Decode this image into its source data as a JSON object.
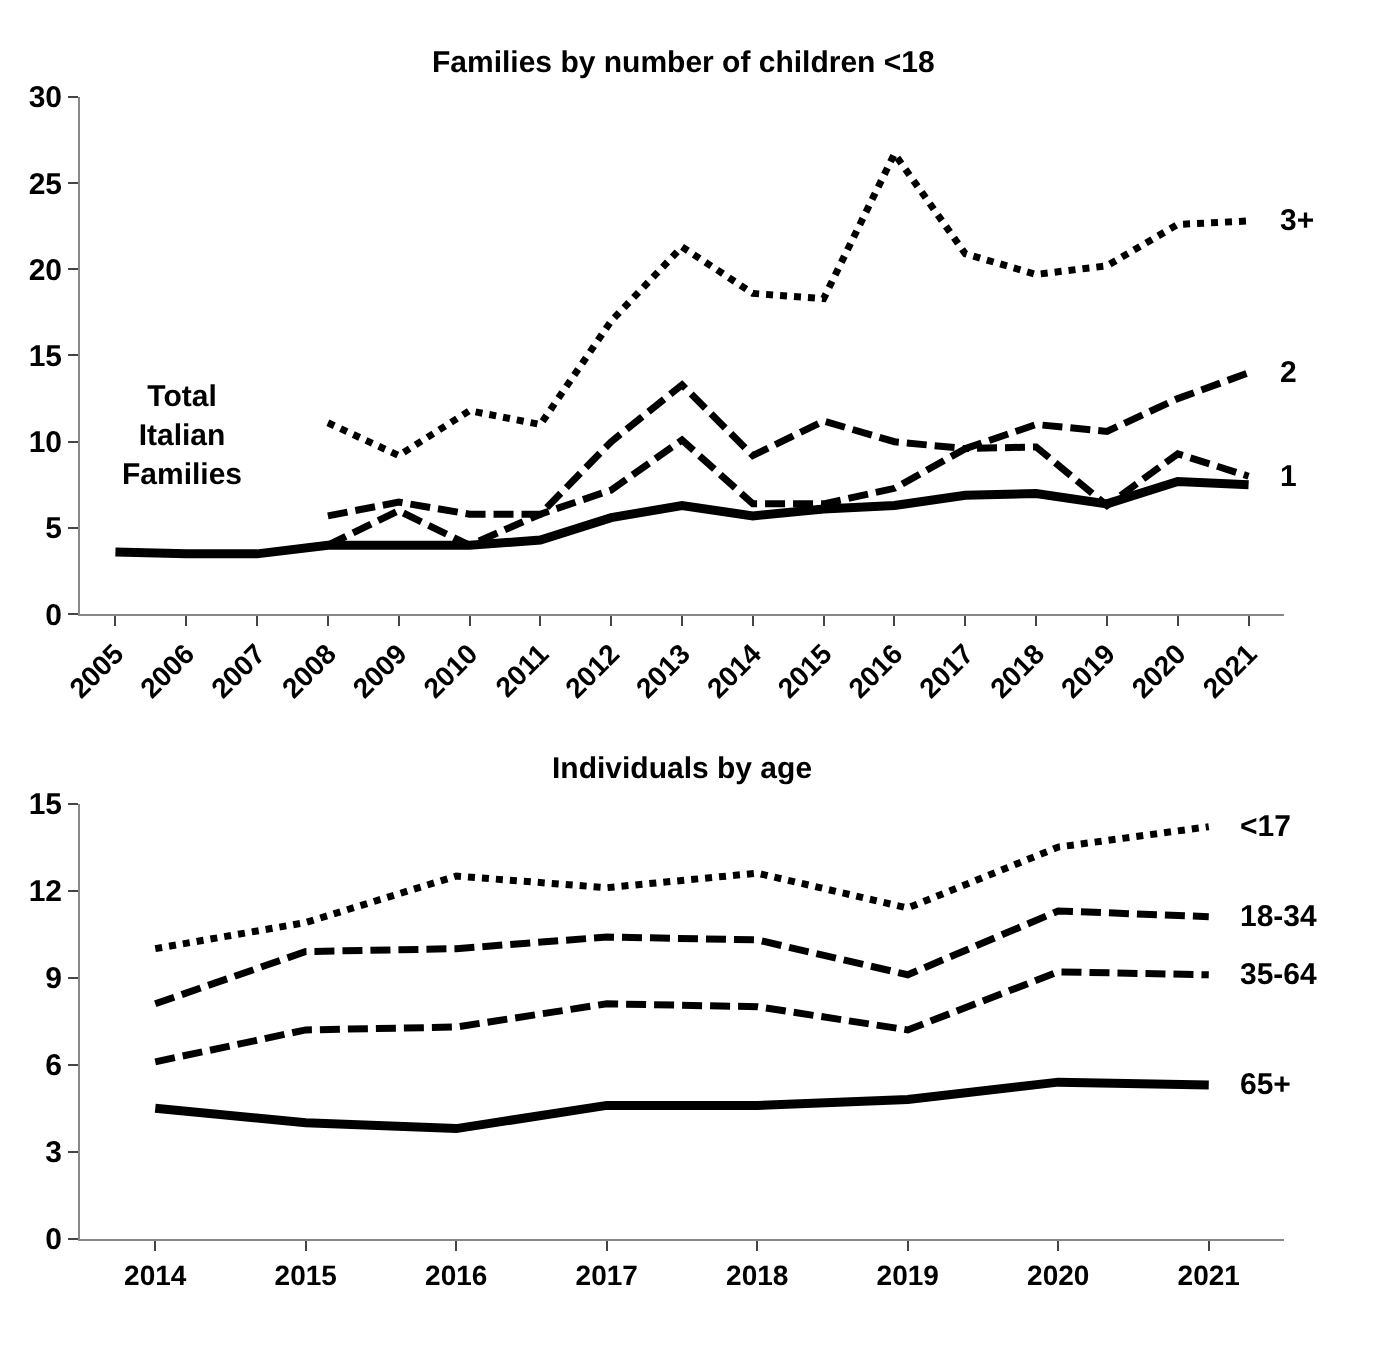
{
  "chart_data": [
    {
      "type": "line",
      "title": "Families by number of children <18",
      "categories": [
        "2005",
        "2006",
        "2007",
        "2008",
        "2009",
        "2010",
        "2011",
        "2012",
        "2013",
        "2014",
        "2015",
        "2016",
        "2017",
        "2018",
        "2019",
        "2020",
        "2021"
      ],
      "series": [
        {
          "name": "3+",
          "color": "#000000",
          "line_style": "dotted",
          "values": [
            null,
            null,
            null,
            11.1,
            9.2,
            11.8,
            11.0,
            17.0,
            21.3,
            18.6,
            18.3,
            26.7,
            20.9,
            19.7,
            20.2,
            22.6,
            22.8
          ]
        },
        {
          "name": "2",
          "color": "#000000",
          "line_style": "dashed",
          "values": [
            null,
            null,
            null,
            5.7,
            6.5,
            5.8,
            5.8,
            10.0,
            13.3,
            9.2,
            11.2,
            10.0,
            9.6,
            11.0,
            10.6,
            12.5,
            14.0
          ]
        },
        {
          "name": "1",
          "color": "#000000",
          "line_style": "dashed",
          "values": [
            null,
            null,
            null,
            4.0,
            6.0,
            4.0,
            5.8,
            7.2,
            10.1,
            6.4,
            6.4,
            7.3,
            9.6,
            9.7,
            6.3,
            9.3,
            8.0
          ]
        },
        {
          "color": "#000000",
          "line_style": "solid",
          "values": [
            3.6,
            3.5,
            3.5,
            4.0,
            4.0,
            4.0,
            4.3,
            5.6,
            6.3,
            5.7,
            6.1,
            6.3,
            6.9,
            7.0,
            6.4,
            7.7,
            7.5
          ]
        }
      ],
      "annotations": [
        "Total\nItalian\nFamilies"
      ],
      "ylim": [
        0,
        30
      ],
      "yticks": [
        0,
        5,
        10,
        15,
        20,
        25,
        30
      ]
    },
    {
      "type": "line",
      "title": "Individuals by age",
      "categories": [
        "2014",
        "2015",
        "2016",
        "2017",
        "2018",
        "2019",
        "2020",
        "2021"
      ],
      "series": [
        {
          "name": "<17",
          "color": "#000000",
          "line_style": "dotted",
          "values": [
            10.0,
            10.9,
            12.5,
            12.1,
            12.6,
            11.4,
            13.5,
            14.2
          ]
        },
        {
          "name": "18-34",
          "color": "#000000",
          "line_style": "dashed",
          "values": [
            8.1,
            9.9,
            10.0,
            10.4,
            10.3,
            9.1,
            11.3,
            11.1
          ]
        },
        {
          "name": "35-64",
          "color": "#000000",
          "line_style": "dashed",
          "values": [
            6.1,
            7.2,
            7.3,
            8.1,
            8.0,
            7.2,
            9.2,
            9.1
          ]
        },
        {
          "name": "65+",
          "color": "#000000",
          "line_style": "solid",
          "values": [
            4.5,
            4.0,
            3.8,
            4.6,
            4.6,
            4.8,
            5.4,
            5.3
          ]
        }
      ],
      "ylim": [
        0,
        15
      ],
      "yticks": [
        0,
        3,
        6,
        9,
        12,
        15
      ]
    }
  ]
}
